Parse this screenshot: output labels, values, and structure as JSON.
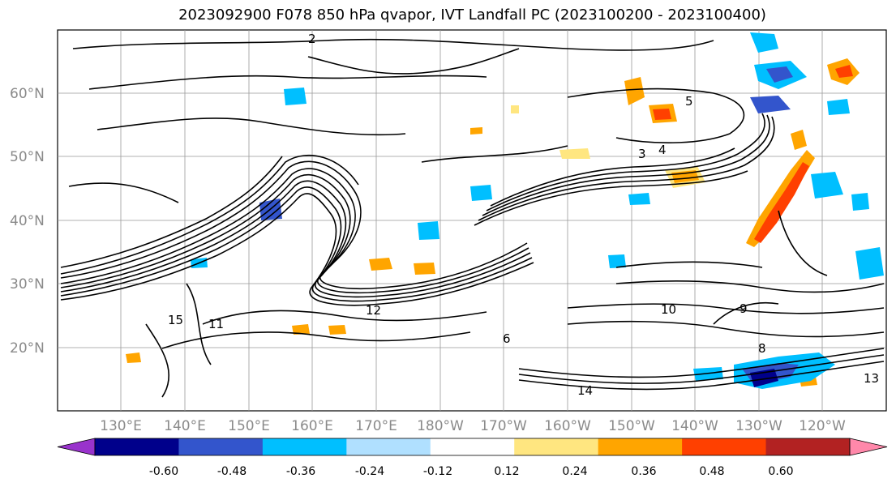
{
  "title": "2023092900 F078 850 hPa qvapor, IVT Landfall PC (2023100200 - 2023100400)",
  "lat_labels": [
    "60°N",
    "50°N",
    "40°N",
    "30°N",
    "20°N"
  ],
  "lon_labels": [
    "130°E",
    "140°E",
    "150°E",
    "160°E",
    "170°E",
    "180°W",
    "170°W",
    "160°W",
    "150°W",
    "140°W",
    "130°W",
    "120°W"
  ],
  "colorbar": {
    "colors": [
      "#9933cc",
      "#00008b",
      "#3355cc",
      "#00bfff",
      "#b0e0ff",
      "#ffffff",
      "#ffe680",
      "#ffa500",
      "#ff4000",
      "#b22222",
      "#ff88aa"
    ],
    "tick_labels": [
      "-0.60",
      "-0.48",
      "-0.36",
      "-0.24",
      "-0.12",
      "0.12",
      "0.24",
      "0.36",
      "0.48",
      "0.60"
    ]
  },
  "contour_labels": [
    "2",
    "3",
    "4",
    "5",
    "6",
    "8",
    "9",
    "10",
    "11",
    "12",
    "13",
    "14",
    "15"
  ]
}
